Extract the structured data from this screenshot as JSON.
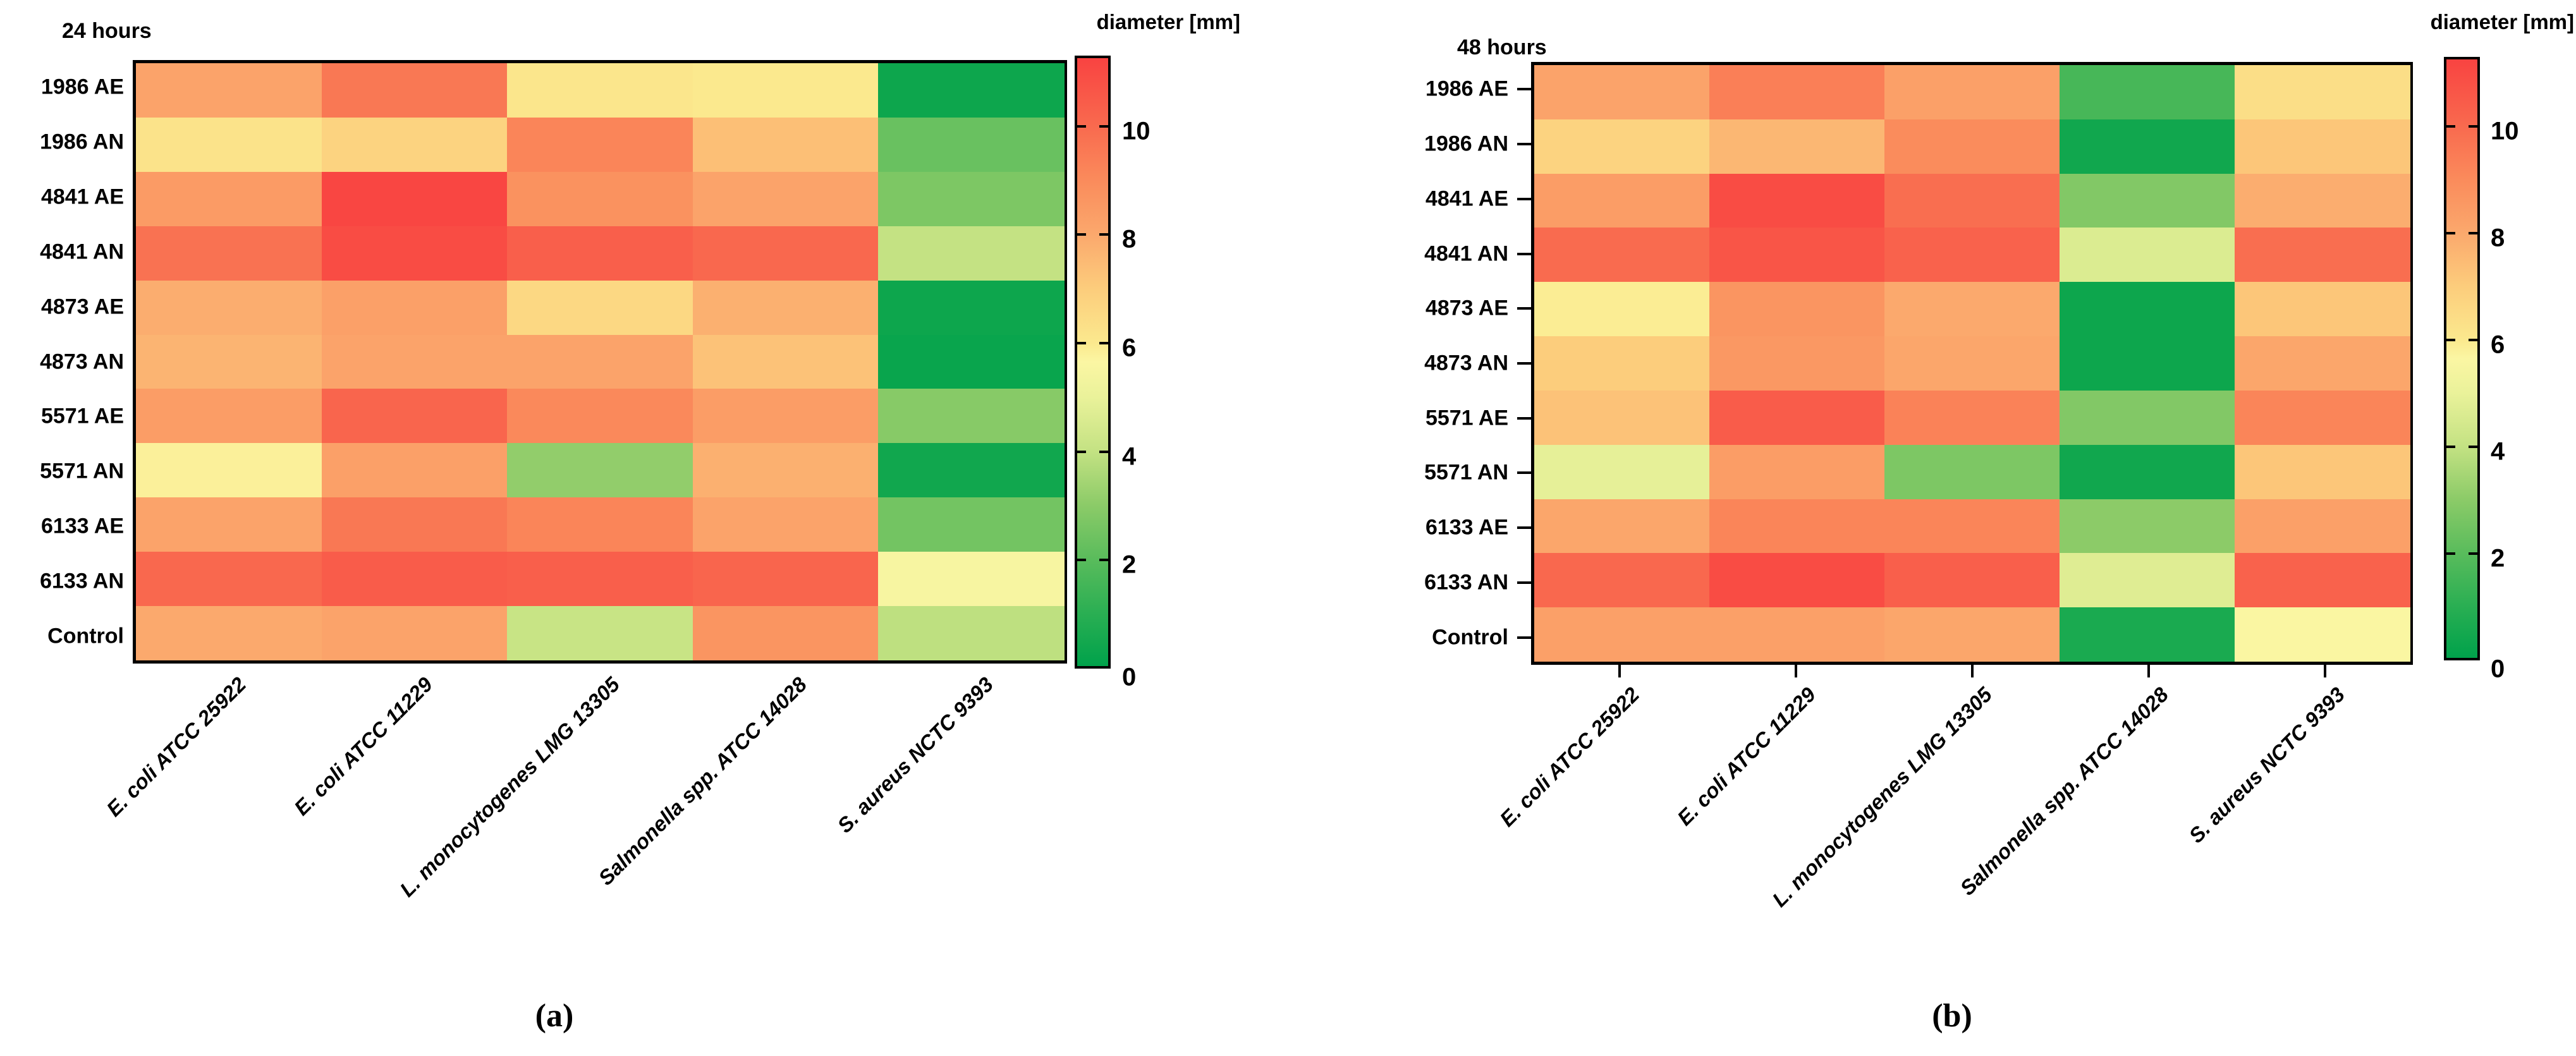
{
  "panels": [
    {
      "id": "a",
      "title": "24 hours",
      "tag": "(a)",
      "colorbar_title": "diameter [mm]",
      "y_labels": [
        "1986 AE",
        "1986 AN",
        "4841 AE",
        "4841 AN",
        "4873 AE",
        "4873 AN",
        "5571 AE",
        "5571 AN",
        "6133 AE",
        "6133 AN",
        "Control"
      ],
      "x_labels": [
        "E. coli ATCC 25922",
        "E. coli ATCC 11229",
        "L. monocytogenes LMG 13305",
        "Salmonella spp. ATCC 14028",
        "S. aureus NCTC 9393"
      ],
      "colorbar_tick_labels": [
        "10",
        "8",
        "6",
        "4",
        "2",
        "0"
      ]
    },
    {
      "id": "b",
      "title": "48 hours",
      "tag": "(b)",
      "colorbar_title": "diameter [mm]",
      "y_labels": [
        "1986 AE",
        "1986 AN",
        "4841 AE",
        "4841 AN",
        "4873 AE",
        "4873 AN",
        "5571 AE",
        "5571 AN",
        "6133 AE",
        "6133 AN",
        "Control"
      ],
      "x_labels": [
        "E. coli ATCC 25922",
        "E. coli ATCC 11229",
        "L. monocytogenes LMG 13305",
        "Salmonella spp. ATCC 14028",
        "S. aureus NCTC 9393"
      ],
      "colorbar_tick_labels": [
        "10",
        "8",
        "6",
        "4",
        "2",
        "0"
      ]
    }
  ],
  "chart_data": [
    {
      "type": "heatmap",
      "title": "24 hours",
      "value_label": "diameter [mm]",
      "rows": [
        "1986 AE",
        "1986 AN",
        "4841 AE",
        "4841 AN",
        "4873 AE",
        "4873 AN",
        "5571 AE",
        "5571 AN",
        "6133 AE",
        "6133 AN",
        "Control"
      ],
      "columns": [
        "E. coli ATCC 25922",
        "E. coli ATCC 11229",
        "L. monocytogenes LMG 13305",
        "Salmonella spp. ATCC 14028",
        "S. aureus NCTC 9393"
      ],
      "values": [
        [
          8.2,
          9.6,
          6.1,
          6.0,
          0.3
        ],
        [
          6.2,
          6.8,
          9.2,
          7.4,
          2.3
        ],
        [
          8.5,
          11.2,
          8.8,
          8.2,
          2.7
        ],
        [
          9.8,
          11.0,
          10.4,
          10.1,
          4.0
        ],
        [
          7.9,
          8.3,
          6.6,
          7.8,
          0.3
        ],
        [
          7.7,
          8.2,
          8.2,
          7.3,
          0.2
        ],
        [
          8.4,
          10.2,
          9.1,
          8.4,
          2.9
        ],
        [
          5.8,
          8.3,
          3.1,
          7.8,
          0.4
        ],
        [
          8.2,
          9.6,
          9.2,
          8.2,
          2.5
        ],
        [
          10.1,
          10.5,
          10.4,
          10.2,
          5.5
        ],
        [
          8.0,
          8.2,
          4.1,
          8.7,
          3.9
        ]
      ],
      "scale": {
        "min": 0,
        "max": 11.3,
        "ticks": [
          0,
          2,
          4,
          6,
          8,
          10
        ],
        "legend_position": "right",
        "colormap_stops": [
          [
            0,
            "#00A24B"
          ],
          [
            1,
            "#2BAF53"
          ],
          [
            2,
            "#5ABC5C"
          ],
          [
            3,
            "#8CCB68"
          ],
          [
            4,
            "#C4E283"
          ],
          [
            5,
            "#EAF29A"
          ],
          [
            5.65,
            "#FBF6A3"
          ],
          [
            6,
            "#FBE98E"
          ],
          [
            7,
            "#FCCD7C"
          ],
          [
            8,
            "#FBA96D"
          ],
          [
            9,
            "#FA8C5C"
          ],
          [
            10,
            "#F96B4F"
          ],
          [
            11.3,
            "#F94341"
          ]
        ]
      }
    },
    {
      "type": "heatmap",
      "title": "48 hours",
      "value_label": "diameter [mm]",
      "rows": [
        "1986 AE",
        "1986 AN",
        "4841 AE",
        "4841 AN",
        "4873 AE",
        "4873 AN",
        "5571 AE",
        "5571 AN",
        "6133 AE",
        "6133 AN",
        "Control"
      ],
      "columns": [
        "E. coli ATCC 25922",
        "E. coli ATCC 11229",
        "L. monocytogenes LMG 13305",
        "Salmonella spp. ATCC 14028",
        "S. aureus NCTC 9393"
      ],
      "values": [
        [
          8.2,
          9.4,
          8.3,
          1.6,
          6.4
        ],
        [
          6.8,
          7.6,
          9.0,
          0.4,
          7.2
        ],
        [
          8.4,
          11.0,
          9.9,
          2.8,
          7.9
        ],
        [
          10.0,
          10.7,
          10.3,
          4.6,
          9.9
        ],
        [
          5.9,
          8.7,
          8.0,
          0.3,
          7.2
        ],
        [
          7.0,
          8.6,
          8.1,
          0.3,
          8.1
        ],
        [
          7.3,
          10.5,
          9.3,
          2.8,
          9.2
        ],
        [
          4.9,
          8.4,
          2.7,
          0.4,
          7.2
        ],
        [
          8.1,
          9.2,
          9.2,
          3.0,
          8.3
        ],
        [
          10.1,
          11.0,
          10.4,
          4.7,
          10.3
        ],
        [
          8.3,
          8.3,
          8.1,
          0.6,
          5.6
        ]
      ],
      "scale": {
        "min": 0,
        "max": 11.3,
        "ticks": [
          0,
          2,
          4,
          6,
          8,
          10
        ],
        "legend_position": "right",
        "colormap_stops": [
          [
            0,
            "#00A24B"
          ],
          [
            1,
            "#2BAF53"
          ],
          [
            2,
            "#5ABC5C"
          ],
          [
            3,
            "#8CCB68"
          ],
          [
            4,
            "#C4E283"
          ],
          [
            5,
            "#EAF29A"
          ],
          [
            5.65,
            "#FBF6A3"
          ],
          [
            6,
            "#FBE98E"
          ],
          [
            7,
            "#FCCD7C"
          ],
          [
            8,
            "#FBA96D"
          ],
          [
            9,
            "#FA8C5C"
          ],
          [
            10,
            "#F96B4F"
          ],
          [
            11.3,
            "#F94341"
          ]
        ]
      }
    }
  ]
}
